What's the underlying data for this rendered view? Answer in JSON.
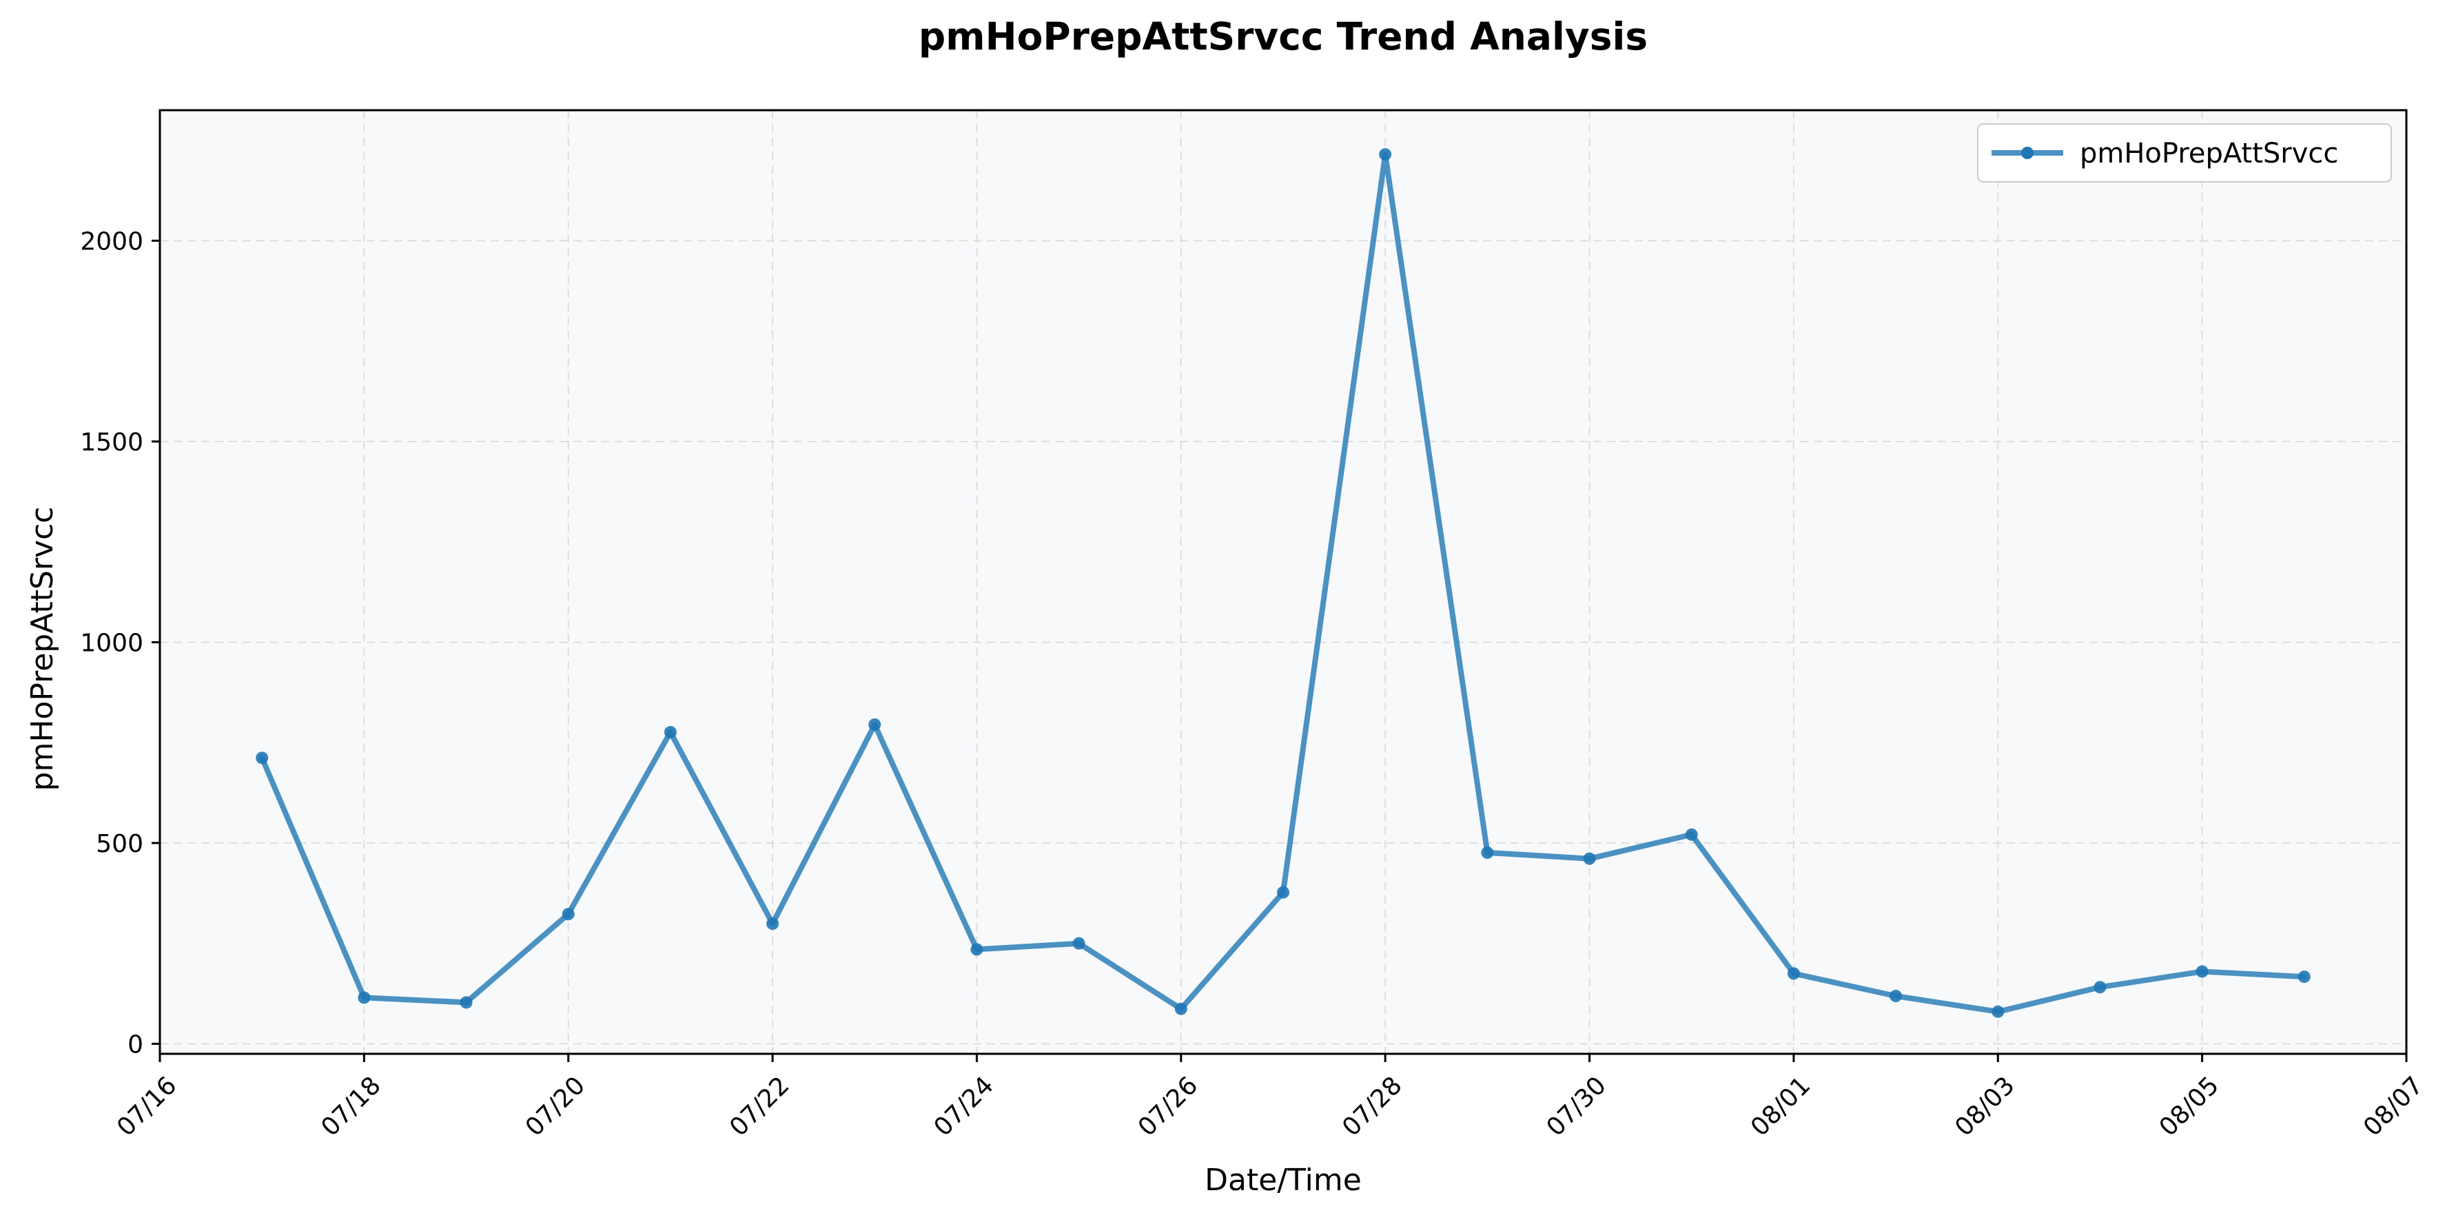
{
  "chart_data": {
    "type": "line",
    "title": "pmHoPrepAttSrvcc Trend Analysis",
    "xlabel": "Date/Time",
    "ylabel": "pmHoPrepAttSrvcc",
    "x_tick_labels": [
      "07/16",
      "07/18",
      "07/20",
      "07/22",
      "07/24",
      "07/26",
      "07/28",
      "07/30",
      "08/01",
      "08/03",
      "08/05",
      "08/07"
    ],
    "y_ticks": [
      0,
      500,
      1000,
      1500,
      2000
    ],
    "xlim": [
      "07/16",
      "08/07"
    ],
    "ylim": [
      -25,
      2325
    ],
    "grid": true,
    "legend_position": "top-right",
    "colors": {
      "series": "#1f77b4",
      "plot_bg": "#f7f9fb",
      "grid": "#dddddd"
    },
    "x": [
      "07/17",
      "07/18",
      "07/19",
      "07/20",
      "07/21",
      "07/22",
      "07/23",
      "07/24",
      "07/25",
      "07/26",
      "07/27",
      "07/28",
      "07/29",
      "07/30",
      "07/31",
      "08/01",
      "08/02",
      "08/03",
      "08/04",
      "08/05",
      "08/06"
    ],
    "series": [
      {
        "name": "pmHoPrepAttSrvcc",
        "values": [
          712,
          115,
          103,
          323,
          776,
          299,
          795,
          235,
          250,
          87,
          377,
          2215,
          476,
          461,
          521,
          175,
          119,
          80,
          141,
          180,
          167
        ]
      }
    ]
  }
}
